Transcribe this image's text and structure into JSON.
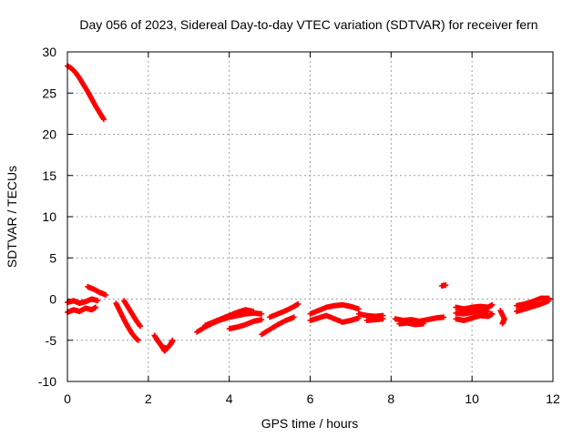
{
  "chart_data": {
    "type": "scatter",
    "title": "Day 056 of 2023, Sidereal Day-to-day VTEC variation (SDTVAR) for receiver fern",
    "xlabel": "GPS time / hours",
    "ylabel": "SDTVAR / TECUs",
    "xlim": [
      0,
      12
    ],
    "ylim": [
      -10,
      30
    ],
    "xticks": [
      0,
      2,
      4,
      6,
      8,
      10,
      12
    ],
    "yticks": [
      -10,
      -5,
      0,
      5,
      10,
      15,
      20,
      25,
      30
    ],
    "grid": true,
    "marker": "plus",
    "color": "#ff0000",
    "series": [
      {
        "name": "SDTVAR",
        "segments": [
          [
            [
              0.0,
              28.3
            ],
            [
              0.1,
              28.0
            ],
            [
              0.2,
              27.5
            ],
            [
              0.3,
              26.8
            ],
            [
              0.4,
              26.0
            ],
            [
              0.5,
              25.2
            ],
            [
              0.6,
              24.3
            ],
            [
              0.7,
              23.4
            ],
            [
              0.8,
              22.6
            ],
            [
              0.9,
              21.8
            ]
          ],
          [
            [
              0.0,
              -0.4
            ],
            [
              0.15,
              -0.2
            ],
            [
              0.3,
              -0.5
            ],
            [
              0.45,
              -0.3
            ],
            [
              0.6,
              0.0
            ],
            [
              0.75,
              -0.2
            ]
          ],
          [
            [
              0.0,
              -1.6
            ],
            [
              0.15,
              -1.3
            ],
            [
              0.3,
              -1.5
            ],
            [
              0.45,
              -1.1
            ],
            [
              0.6,
              -1.3
            ],
            [
              0.7,
              -1.0
            ]
          ],
          [
            [
              0.5,
              1.5
            ],
            [
              0.65,
              1.2
            ],
            [
              0.8,
              0.8
            ],
            [
              0.95,
              0.5
            ]
          ],
          [
            [
              1.2,
              -0.5
            ],
            [
              1.3,
              -1.5
            ],
            [
              1.4,
              -2.5
            ],
            [
              1.5,
              -3.4
            ],
            [
              1.6,
              -4.2
            ],
            [
              1.7,
              -4.8
            ],
            [
              1.75,
              -5.0
            ]
          ],
          [
            [
              1.4,
              -0.2
            ],
            [
              1.5,
              -1.0
            ],
            [
              1.6,
              -1.8
            ],
            [
              1.7,
              -2.6
            ],
            [
              1.8,
              -3.3
            ]
          ],
          [
            [
              2.15,
              -4.4
            ],
            [
              2.25,
              -5.2
            ],
            [
              2.35,
              -5.8
            ],
            [
              2.45,
              -6.0
            ],
            [
              2.55,
              -5.5
            ],
            [
              2.6,
              -5.0
            ]
          ],
          [
            [
              2.2,
              -4.8
            ],
            [
              2.3,
              -5.5
            ],
            [
              2.4,
              -6.3
            ],
            [
              2.5,
              -5.8
            ]
          ],
          [
            [
              3.2,
              -4.0
            ],
            [
              3.4,
              -3.4
            ],
            [
              3.6,
              -2.9
            ],
            [
              3.8,
              -2.5
            ],
            [
              4.0,
              -2.2
            ],
            [
              4.2,
              -2.0
            ],
            [
              4.4,
              -1.8
            ],
            [
              4.6,
              -1.7
            ],
            [
              4.8,
              -1.8
            ]
          ],
          [
            [
              3.4,
              -3.2
            ],
            [
              3.6,
              -2.8
            ],
            [
              3.8,
              -2.4
            ],
            [
              4.0,
              -2.0
            ],
            [
              4.2,
              -1.6
            ],
            [
              4.4,
              -1.3
            ],
            [
              4.6,
              -1.5
            ]
          ],
          [
            [
              4.0,
              -3.6
            ],
            [
              4.2,
              -3.4
            ],
            [
              4.4,
              -3.1
            ],
            [
              4.6,
              -2.7
            ],
            [
              4.8,
              -2.5
            ]
          ],
          [
            [
              4.8,
              -4.3
            ],
            [
              5.0,
              -3.7
            ],
            [
              5.2,
              -3.1
            ],
            [
              5.4,
              -2.6
            ],
            [
              5.6,
              -2.2
            ]
          ],
          [
            [
              5.0,
              -2.2
            ],
            [
              5.2,
              -1.8
            ],
            [
              5.4,
              -1.4
            ],
            [
              5.6,
              -0.9
            ],
            [
              5.7,
              -0.6
            ]
          ],
          [
            [
              6.0,
              -1.8
            ],
            [
              6.2,
              -1.4
            ],
            [
              6.4,
              -1.0
            ],
            [
              6.6,
              -0.8
            ],
            [
              6.8,
              -0.7
            ],
            [
              7.0,
              -0.9
            ],
            [
              7.2,
              -1.2
            ]
          ],
          [
            [
              6.0,
              -2.6
            ],
            [
              6.2,
              -2.3
            ],
            [
              6.4,
              -2.0
            ],
            [
              6.6,
              -2.4
            ],
            [
              6.8,
              -2.8
            ],
            [
              7.0,
              -2.6
            ],
            [
              7.2,
              -2.3
            ]
          ],
          [
            [
              7.2,
              -1.8
            ],
            [
              7.4,
              -2.0
            ],
            [
              7.6,
              -2.1
            ],
            [
              7.8,
              -2.0
            ]
          ],
          [
            [
              7.4,
              -2.6
            ],
            [
              7.6,
              -2.5
            ],
            [
              7.8,
              -2.4
            ]
          ],
          [
            [
              8.1,
              -2.4
            ],
            [
              8.3,
              -2.6
            ],
            [
              8.5,
              -2.5
            ],
            [
              8.7,
              -2.7
            ],
            [
              8.9,
              -2.5
            ],
            [
              9.1,
              -2.3
            ],
            [
              9.3,
              -2.2
            ]
          ],
          [
            [
              8.2,
              -3.0
            ],
            [
              8.4,
              -2.9
            ],
            [
              8.6,
              -3.1
            ],
            [
              8.8,
              -3.0
            ]
          ],
          [
            [
              9.25,
              1.6
            ],
            [
              9.35,
              1.7
            ]
          ],
          [
            [
              9.6,
              -1.0
            ],
            [
              9.8,
              -1.2
            ],
            [
              10.0,
              -1.0
            ],
            [
              10.2,
              -0.9
            ],
            [
              10.4,
              -1.0
            ],
            [
              10.5,
              -0.7
            ]
          ],
          [
            [
              9.6,
              -2.4
            ],
            [
              9.8,
              -2.6
            ],
            [
              10.0,
              -2.3
            ],
            [
              10.2,
              -2.0
            ],
            [
              10.4,
              -2.1
            ],
            [
              10.5,
              -1.8
            ]
          ],
          [
            [
              9.6,
              -1.7
            ],
            [
              9.8,
              -1.8
            ],
            [
              10.0,
              -1.6
            ],
            [
              10.2,
              -1.4
            ],
            [
              10.4,
              -1.5
            ]
          ],
          [
            [
              10.7,
              -1.4
            ],
            [
              10.8,
              -2.4
            ],
            [
              10.75,
              -3.0
            ]
          ],
          [
            [
              11.1,
              -1.5
            ],
            [
              11.3,
              -1.2
            ],
            [
              11.5,
              -0.9
            ],
            [
              11.7,
              -0.6
            ],
            [
              11.9,
              -0.2
            ]
          ],
          [
            [
              11.1,
              -0.8
            ],
            [
              11.3,
              -0.6
            ],
            [
              11.5,
              -0.3
            ],
            [
              11.7,
              0.1
            ],
            [
              11.9,
              0.1
            ]
          ]
        ]
      }
    ]
  }
}
